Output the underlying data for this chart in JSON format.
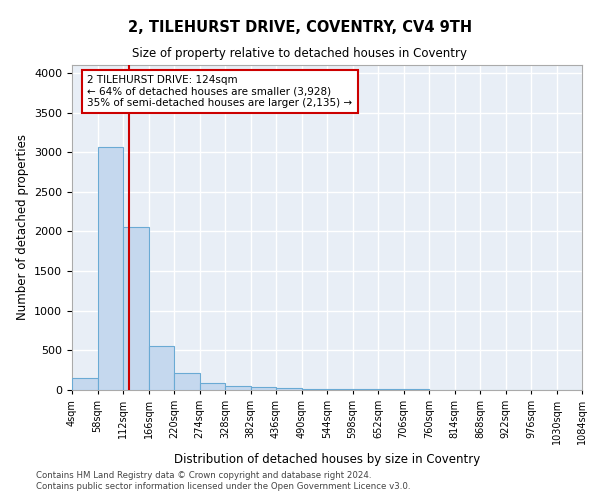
{
  "title": "2, TILEHURST DRIVE, COVENTRY, CV4 9TH",
  "subtitle": "Size of property relative to detached houses in Coventry",
  "xlabel": "Distribution of detached houses by size in Coventry",
  "ylabel": "Number of detached properties",
  "bar_color": "#c5d8ee",
  "bar_edge_color": "#6aaad4",
  "background_color": "#e8eef6",
  "grid_color": "#ffffff",
  "annotation_box_color": "#cc0000",
  "property_line_color": "#cc0000",
  "property_size": 124,
  "annotation_line1": "2 TILEHURST DRIVE: 124sqm",
  "annotation_line2": "← 64% of detached houses are smaller (3,928)",
  "annotation_line3": "35% of semi-detached houses are larger (2,135) →",
  "footer1": "Contains HM Land Registry data © Crown copyright and database right 2024.",
  "footer2": "Contains public sector information licensed under the Open Government Licence v3.0.",
  "bin_edges": [
    4,
    58,
    112,
    166,
    220,
    274,
    328,
    382,
    436,
    490,
    544,
    598,
    652,
    706,
    760,
    814,
    868,
    922,
    976,
    1030,
    1084
  ],
  "bin_counts": [
    150,
    3060,
    2060,
    560,
    210,
    85,
    55,
    40,
    25,
    18,
    12,
    10,
    8,
    7,
    6,
    5,
    4,
    3,
    2,
    2
  ],
  "ylim": [
    0,
    4100
  ],
  "yticks": [
    0,
    500,
    1000,
    1500,
    2000,
    2500,
    3000,
    3500,
    4000
  ]
}
